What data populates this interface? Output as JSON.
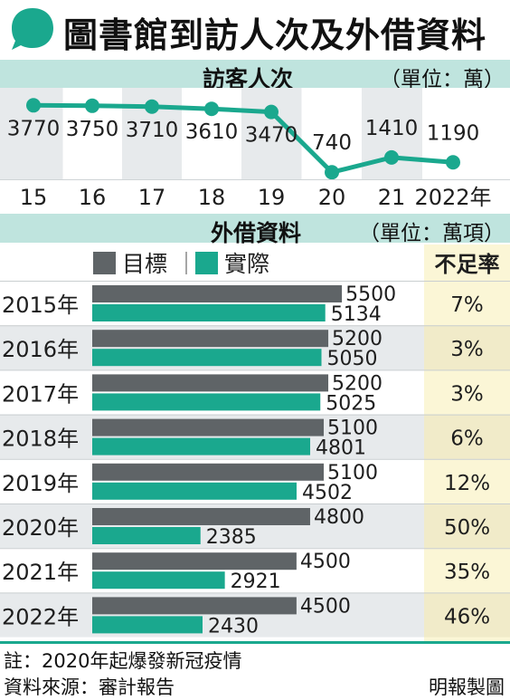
{
  "title": "圖書館到訪人次及外借資料",
  "colors": {
    "accent": "#1aa88e",
    "header_bg": "#bfe4de",
    "target_bar": "#5f6467",
    "shortfall_bg": "#fbf6d6",
    "zebra": "#e7eaec"
  },
  "visitors": {
    "title": "訪客人次",
    "unit": "（單位：萬）"
  },
  "loans": {
    "title": "外借資料",
    "unit": "（單位：萬項）",
    "legend": {
      "target": "目標",
      "actual": "實際",
      "shortfall": "不足率"
    }
  },
  "footnote": "註：2020年起爆發新冠疫情",
  "source": "資料來源：審計報告",
  "credit": "明報製圖",
  "chart_data": [
    {
      "type": "line",
      "x": [
        "15",
        "16",
        "17",
        "18",
        "19",
        "20",
        "21",
        "2022年"
      ],
      "values": [
        3770,
        3750,
        3710,
        3610,
        3470,
        740,
        1410,
        1190
      ]
    },
    {
      "type": "bar",
      "orientation": "horizontal",
      "categories": [
        "2015年",
        "2016年",
        "2017年",
        "2018年",
        "2019年",
        "2020年",
        "2021年",
        "2022年"
      ],
      "series": [
        {
          "name": "目標",
          "values": [
            5500,
            5200,
            5200,
            5100,
            5100,
            4800,
            4500,
            4500
          ]
        },
        {
          "name": "實際",
          "values": [
            5134,
            5050,
            5025,
            4801,
            4502,
            2385,
            2921,
            2430
          ]
        }
      ],
      "shortfall": [
        "7%",
        "3%",
        "3%",
        "6%",
        "12%",
        "50%",
        "35%",
        "46%"
      ]
    }
  ]
}
